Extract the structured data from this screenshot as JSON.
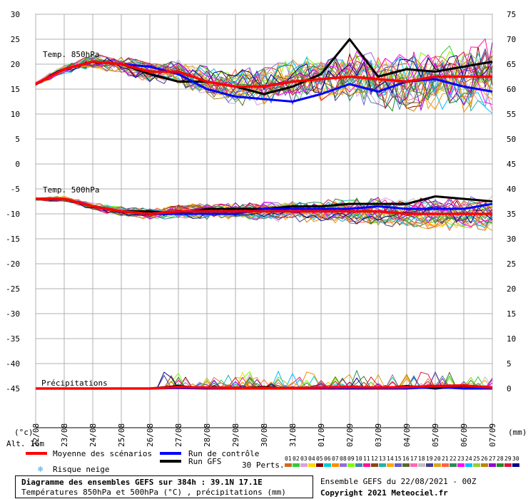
{
  "chart_data": [
    {
      "type": "line",
      "panel": "Temp. 850hPa",
      "title": "Temp. 850hPa",
      "x": [
        "22/08",
        "23/08",
        "24/08",
        "25/08",
        "26/08",
        "27/08",
        "28/08",
        "29/08",
        "30/08",
        "31/08",
        "01/09",
        "02/09",
        "03/09",
        "04/09",
        "05/09",
        "06/09",
        "07/09"
      ],
      "ylim_left": [
        0,
        30
      ],
      "ylim_right": [
        45,
        75
      ],
      "series": [
        {
          "name": "Moyenne des scénarios",
          "color": "#ff0000",
          "values": [
            16,
            19,
            20.5,
            20,
            18.5,
            18.5,
            16.5,
            15.5,
            15.5,
            16.5,
            17,
            17.5,
            17,
            16.5,
            17.5,
            17.5,
            17.5
          ]
        },
        {
          "name": "Run de contrôle",
          "color": "#0000ff",
          "values": [
            16,
            19,
            20.5,
            20,
            19.5,
            18,
            15,
            13.5,
            13,
            12.5,
            14,
            16,
            14.5,
            16.5,
            17,
            15.5,
            14.5
          ]
        },
        {
          "name": "Run GFS",
          "color": "#000000",
          "values": [
            16,
            19,
            20.5,
            20,
            18,
            16.5,
            16.5,
            15.5,
            14,
            15.5,
            18,
            25,
            17.5,
            19,
            18.5,
            19.5,
            20.5
          ]
        }
      ]
    },
    {
      "type": "line",
      "panel": "Temp. 500hPa",
      "title": "Temp. 500hPa",
      "x": [
        "22/08",
        "23/08",
        "24/08",
        "25/08",
        "26/08",
        "27/08",
        "28/08",
        "29/08",
        "30/08",
        "31/08",
        "01/09",
        "02/09",
        "03/09",
        "04/09",
        "05/09",
        "06/09",
        "07/09"
      ],
      "series": [
        {
          "name": "Moyenne des scénarios",
          "color": "#ff0000",
          "values": [
            -7,
            -7,
            -8.5,
            -9.5,
            -10,
            -9.5,
            -9.5,
            -9.5,
            -9.5,
            -9.5,
            -9.5,
            -9.5,
            -9.5,
            -10,
            -10,
            -10,
            -10
          ]
        },
        {
          "name": "Run de contrôle",
          "color": "#0000ff",
          "values": [
            -7,
            -7,
            -8.5,
            -9.5,
            -10,
            -10,
            -10,
            -10,
            -9,
            -9,
            -9,
            -9,
            -8.5,
            -9,
            -9,
            -9,
            -8
          ]
        },
        {
          "name": "Run GFS",
          "color": "#000000",
          "values": [
            -7,
            -7,
            -8.5,
            -9.5,
            -9.5,
            -10,
            -9,
            -9,
            -9,
            -8.5,
            -8.5,
            -8,
            -8,
            -8,
            -6.5,
            -7,
            -7.5
          ]
        }
      ]
    },
    {
      "type": "line",
      "panel": "Précipitations",
      "title": "Précipitations",
      "x": [
        "22/08",
        "23/08",
        "24/08",
        "25/08",
        "26/08",
        "27/08",
        "28/08",
        "29/08",
        "30/08",
        "31/08",
        "01/09",
        "02/09",
        "03/09",
        "04/09",
        "05/09",
        "06/09",
        "07/09"
      ],
      "series": [
        {
          "name": "Moyenne des scénarios",
          "color": "#ff0000",
          "values": [
            0,
            0,
            0,
            0,
            0,
            0.3,
            0.2,
            0.1,
            0.1,
            0.1,
            0.2,
            0.3,
            0.2,
            0.3,
            0.5,
            0.6,
            0.2
          ]
        },
        {
          "name": "Run de contrôle",
          "color": "#0000ff",
          "values": [
            0,
            0,
            0,
            0,
            0,
            0.1,
            0,
            0,
            0,
            0,
            0,
            0,
            0,
            0,
            0.3,
            0,
            0
          ]
        },
        {
          "name": "Run GFS",
          "color": "#000000",
          "values": [
            0,
            0,
            0,
            0,
            0,
            0.5,
            0,
            0,
            0.3,
            0,
            0,
            0,
            0,
            0.5,
            0,
            0.5,
            0
          ]
        }
      ]
    }
  ],
  "axes": {
    "left_ticks": [
      "30",
      "25",
      "20",
      "15",
      "10",
      "5",
      "0",
      "-5",
      "-10",
      "-15",
      "-20",
      "-25",
      "-30",
      "-35",
      "-40",
      "-45"
    ],
    "right_ticks_top": [
      "75",
      "70",
      "65",
      "60",
      "55",
      "50",
      "45"
    ],
    "right_ticks_bottom": [
      "40",
      "35",
      "30",
      "25",
      "20",
      "15",
      "10",
      "5",
      "0"
    ],
    "left_unit": "(°c)",
    "right_unit": "(mm)",
    "alt_label": "Alt. 16m"
  },
  "legend": {
    "mean_label": "Moyenne des scénarios",
    "control_label": "Run de contrôle",
    "gfs_label": "Run GFS",
    "snow_label": "Risque neige",
    "snow_icon": "snowflake-icon",
    "perts_label": "30 Perts.",
    "perts_numbers": [
      "01",
      "02",
      "03",
      "04",
      "05",
      "06",
      "07",
      "08",
      "09",
      "10",
      "11",
      "12",
      "13",
      "14",
      "15",
      "16",
      "17",
      "18",
      "19",
      "20",
      "21",
      "22",
      "23",
      "24",
      "25",
      "26",
      "27",
      "28",
      "29",
      "30"
    ],
    "perts_colors": [
      "#d2691e",
      "#32cd32",
      "#dda0dd",
      "#ffd700",
      "#8b0000",
      "#00ced1",
      "#ff8c00",
      "#9370db",
      "#7cfc00",
      "#4682b4",
      "#ff1493",
      "#8b4513",
      "#20b2aa",
      "#ffa500",
      "#6a5acd",
      "#556b2f",
      "#ff69b4",
      "#c0c0c0",
      "#483d8b",
      "#daa520",
      "#ff6347",
      "#2e8b57",
      "#ff00ff",
      "#00bfff",
      "#9acd32",
      "#b8860b",
      "#9400d3",
      "#228b22",
      "#dc143c",
      "#00008b"
    ]
  },
  "info": {
    "line1": "Diagramme des ensembles GEFS sur 384h : 39.1N 17.1E",
    "line2": "Températures 850hPa et 500hPa (°C) , précipitations (mm)",
    "run_info": "Ensemble GEFS du 22/08/2021 - 00Z",
    "copyright": "Copyright 2021 Meteociel.fr"
  }
}
